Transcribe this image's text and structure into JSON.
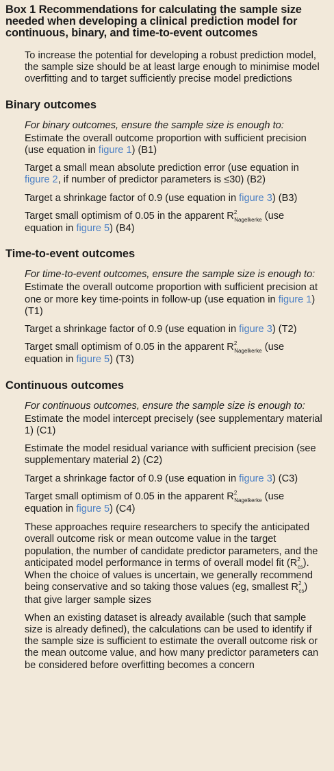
{
  "title": "Box 1 Recommendations for calculating the sample size needed when developing a clinical prediction model for continuous, binary, and time-to-event outcomes",
  "intro": "To increase the potential for developing a robust prediction model, the sample size should be at least large enough to minimise model overfitting and to target sufficiently precise model predictions",
  "binary": {
    "heading": "Binary outcomes",
    "lead": "For binary outcomes, ensure the sample size is enough to:",
    "b1": {
      "text": "Estimate the overall outcome proportion with sufficient precision (use equation in ",
      "link": "figure 1",
      "tail": ") (B1)"
    },
    "b2": {
      "text": "Target a small mean absolute prediction error (use equation in ",
      "link": "figure 2",
      "tail": ", if number of predictor parameters is ≤30) (B2)"
    },
    "b3": {
      "text": "Target a shrinkage factor of 0.9 (use equation in ",
      "link": "figure 3",
      "tail": ") (B3)"
    },
    "b4": {
      "text": "Target small optimism of 0.05 in the apparent R",
      "sup": "2",
      "sub": "Nagelkerke",
      "mid": " (use equation in ",
      "link": "figure 5",
      "tail": ") (B4)"
    }
  },
  "tte": {
    "heading": "Time-to-event outcomes",
    "lead": "For time-to-event outcomes, ensure the sample size is enough to:",
    "t1": {
      "text": "Estimate the overall outcome proportion with sufficient precision at one or more key time-points in follow-up (use equation in ",
      "link": "figure 1",
      "tail": ") (T1)"
    },
    "t2": {
      "text": "Target a shrinkage factor of 0.9 (use equation in ",
      "link": "figure 3",
      "tail": ") (T2)"
    },
    "t3": {
      "text": "Target small optimism of 0.05 in the apparent R",
      "sup": "2",
      "sub": "Nagelkerke",
      "mid": " (use equation in ",
      "link": "figure 5",
      "tail": ") (T3)"
    }
  },
  "cont": {
    "heading": "Continuous outcomes",
    "lead": "For continuous outcomes, ensure the sample size is enough to:",
    "c1": "Estimate the model intercept precisely (see supplementary material 1) (C1)",
    "c2": "Estimate the model residual variance with sufficient precision (see supplementary material 2) (C2)",
    "c3": {
      "text": "Target a shrinkage factor of 0.9 (use equation in ",
      "link": "figure 3",
      "tail": ") (C3)"
    },
    "c4": {
      "text": "Target small optimism of 0.05 in the apparent R",
      "sup": "2",
      "sub": "Nagelkerke",
      "mid": " (use equation in ",
      "link": "figure 5",
      "tail": ") (C4)"
    }
  },
  "approach": {
    "a": "These approaches require researchers to specify the anticipated overall outcome risk or mean outcome value in the target population, the number of candidate predictor parameters, and the anticipated model performance in terms of overall model fit (R",
    "sup1": "2",
    "sub1": "cs",
    "b": "). When the choice of values is uncertain, we generally recommend being conservative and so taking those values (eg, smallest R",
    "sup2": "2",
    "sub2": "cs",
    "c": ") that give larger sample sizes"
  },
  "existing": "When an existing dataset is already available (such that sample size is already defined), the calculations can be used to identify if the sample size is sufficient to estimate the overall outcome risk or the mean outcome value, and how many predictor parameters can be considered before overfitting becomes a concern"
}
